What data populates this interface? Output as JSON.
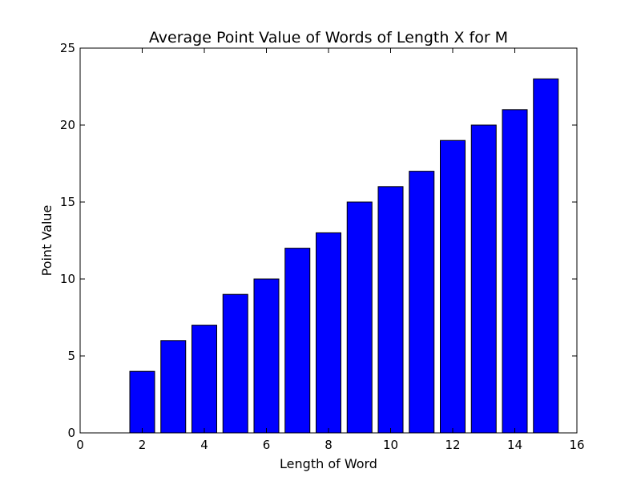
{
  "chart_data": {
    "type": "bar",
    "title": "Average Point Value of Words of Length X for M",
    "xlabel": "Length of Word",
    "ylabel": "Point Value",
    "xlim": [
      0,
      16
    ],
    "ylim": [
      0,
      25
    ],
    "xticks": [
      "0",
      "2",
      "4",
      "6",
      "8",
      "10",
      "12",
      "14",
      "16"
    ],
    "yticks": [
      "0",
      "5",
      "10",
      "15",
      "20",
      "25"
    ],
    "x": [
      2,
      3,
      4,
      5,
      6,
      7,
      8,
      9,
      10,
      11,
      12,
      13,
      14,
      15
    ],
    "values": [
      4,
      6,
      7,
      9,
      10,
      12,
      13,
      15,
      16,
      17,
      19,
      20,
      21,
      23
    ],
    "bar_width": 0.8,
    "bar_color": "#0000ff",
    "edge_color": "#000000",
    "grid": false,
    "legend": false
  }
}
